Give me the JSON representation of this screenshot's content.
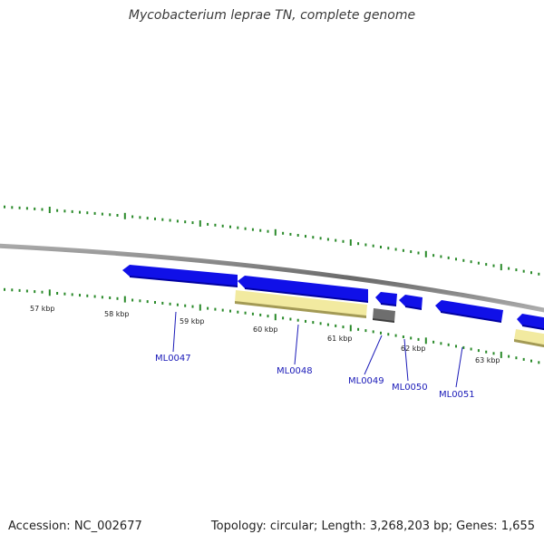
{
  "title": "Mycobacterium leprae TN, complete genome",
  "footer": {
    "accession": "Accession: NC_002677",
    "stats": "Topology: circular; Length: 3,268,203 bp; Genes: 1,655"
  },
  "scale_labels": [
    "57 kbp",
    "58 kbp",
    "59 kbp",
    "60 kbp",
    "61 kbp",
    "62 kbp",
    "63 kbp"
  ],
  "genes": [
    {
      "name": "ML0047",
      "type": "CDS",
      "strand": "reverse"
    },
    {
      "name": "ML0048",
      "type": "CDS",
      "strand": "reverse"
    },
    {
      "name": "ML0049",
      "type": "CDS",
      "strand": "reverse"
    },
    {
      "name": "ML0050",
      "type": "CDS",
      "strand": "reverse"
    },
    {
      "name": "ML0051",
      "type": "CDS",
      "strand": "reverse"
    }
  ],
  "colors": {
    "cds": "#1010e8",
    "pseudo": "#f2eaa0",
    "misc": "#6e6e6e",
    "backbone": "#8a8a8a",
    "ticks": "#2a8a2a",
    "labels": "#1a1ab8"
  }
}
